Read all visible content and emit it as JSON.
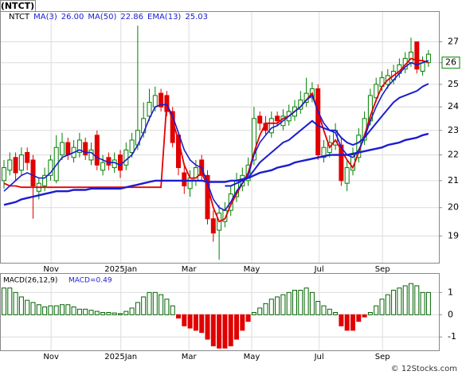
{
  "chart_data": [
    {
      "type": "candlestick",
      "title": "(NTCT)",
      "symbol": "NTCT",
      "log": true,
      "grid": true,
      "up_color": "#008000",
      "down_color": "#e00000",
      "ylim": [
        18.1,
        28.5
      ],
      "yticks": [
        19,
        20,
        21,
        22,
        23,
        24,
        25,
        26,
        27
      ],
      "xticks": [
        {
          "value": 8.1,
          "label": "Nov"
        },
        {
          "value": 20.1,
          "label": "2025Jan"
        },
        {
          "value": 31.8,
          "label": "Mar"
        },
        {
          "value": 42.6,
          "label": "May"
        },
        {
          "value": 54.2,
          "label": "Jul"
        },
        {
          "value": 65.1,
          "label": "Sep"
        }
      ],
      "last_price": 26,
      "open": [
        21.0,
        21.4,
        21.9,
        21.4,
        22.1,
        21.8,
        20.6,
        20.8,
        21.2,
        21.0,
        22.0,
        22.5,
        21.9,
        22.1,
        22.5,
        21.8,
        22.8,
        21.4,
        21.9,
        21.5,
        22.0,
        21.6,
        22.1,
        22.4,
        22.9,
        23.6,
        24.0,
        24.6,
        24.5,
        23.8,
        22.8,
        21.3,
        20.7,
        21.0,
        21.8,
        21.2,
        19.6,
        19.2,
        19.5,
        19.9,
        20.4,
        20.8,
        21.0,
        21.8,
        23.6,
        23.3,
        22.9,
        23.6,
        23.2,
        23.4,
        23.6,
        23.9,
        24.2,
        24.4,
        24.8,
        21.9,
        22.1,
        22.4,
        22.4,
        20.9,
        21.4,
        21.9,
        22.6,
        23.4,
        24.4,
        24.9,
        25.0,
        25.2,
        25.5,
        25.7,
        26.0,
        27.0,
        25.6,
        26.0
      ],
      "high": [
        21.8,
        22.1,
        22.1,
        22.3,
        22.3,
        22.0,
        21.1,
        21.5,
        22.0,
        22.8,
        22.9,
        22.7,
        22.6,
        22.9,
        22.7,
        22.5,
        23.0,
        22.0,
        22.1,
        22.1,
        22.2,
        22.5,
        22.9,
        27.8,
        24.2,
        24.8,
        24.9,
        24.8,
        24.7,
        24.0,
        22.9,
        21.6,
        21.4,
        21.8,
        22.0,
        21.4,
        19.9,
        20.1,
        20.2,
        20.8,
        21.3,
        21.5,
        21.9,
        24.0,
        23.8,
        23.6,
        23.8,
        23.8,
        23.9,
        24.1,
        24.3,
        24.7,
        25.3,
        25.1,
        25.0,
        22.6,
        22.8,
        23.3,
        22.7,
        21.8,
        22.3,
        23.1,
        23.8,
        24.8,
        25.3,
        25.6,
        25.7,
        25.9,
        26.2,
        26.5,
        27.2,
        27.0,
        26.3,
        26.6
      ],
      "low": [
        20.7,
        21.2,
        21.0,
        21.2,
        21.4,
        19.6,
        20.3,
        20.6,
        21.0,
        20.9,
        21.8,
        21.8,
        21.7,
        21.9,
        21.8,
        21.6,
        21.4,
        21.2,
        21.4,
        21.3,
        21.1,
        21.4,
        21.9,
        22.2,
        22.7,
        23.4,
        23.8,
        23.8,
        23.6,
        22.3,
        21.2,
        20.5,
        20.4,
        20.8,
        21.0,
        19.4,
        18.8,
        18.2,
        19.3,
        19.7,
        20.2,
        20.6,
        20.8,
        21.6,
        23.0,
        22.8,
        22.7,
        23.2,
        23.0,
        23.2,
        23.4,
        23.7,
        24.0,
        24.2,
        21.8,
        21.7,
        21.9,
        22.2,
        20.8,
        20.6,
        21.2,
        21.7,
        22.4,
        23.2,
        24.2,
        24.7,
        24.8,
        25.0,
        25.3,
        25.5,
        25.8,
        25.5,
        25.4,
        25.8
      ],
      "close": [
        21.5,
        21.8,
        21.3,
        22.0,
        21.7,
        20.8,
        20.9,
        21.2,
        21.8,
        22.3,
        22.5,
        22.0,
        22.3,
        22.6,
        22.0,
        22.2,
        21.6,
        21.7,
        21.6,
        21.8,
        21.4,
        22.2,
        22.6,
        23.0,
        23.5,
        24.2,
        24.5,
        24.0,
        23.8,
        22.5,
        21.5,
        20.8,
        21.1,
        21.5,
        21.2,
        19.6,
        19.1,
        19.8,
        19.9,
        20.5,
        21.0,
        21.2,
        21.6,
        23.5,
        23.3,
        23.0,
        23.5,
        23.4,
        23.6,
        23.8,
        24.0,
        24.3,
        24.6,
        24.8,
        22.0,
        22.3,
        22.5,
        23.0,
        21.0,
        21.5,
        22.0,
        22.8,
        23.5,
        24.5,
        25.0,
        25.3,
        25.4,
        25.6,
        25.9,
        26.2,
        26.5,
        25.7,
        26.0,
        26.4
      ],
      "series": [
        {
          "name": "MA(3)",
          "legend_value": "26.00",
          "color": "#e60000",
          "width": 1.8,
          "values": [
            20.9,
            20.8,
            20.8,
            20.75,
            20.75,
            20.75,
            20.75,
            20.75,
            20.75,
            20.75,
            20.75,
            20.75,
            20.75,
            20.75,
            20.75,
            20.75,
            20.75,
            20.75,
            20.75,
            20.75,
            20.75,
            20.75,
            20.75,
            20.75,
            20.75,
            20.75,
            20.75,
            20.75,
            24.2,
            23.4,
            22.6,
            21.6,
            21.1,
            21.1,
            21.3,
            20.8,
            20.0,
            19.5,
            19.6,
            20.1,
            20.5,
            20.9,
            21.3,
            22.1,
            22.8,
            23.3,
            23.3,
            23.3,
            23.5,
            23.6,
            23.8,
            24.0,
            24.3,
            24.6,
            23.8,
            23.0,
            22.3,
            22.6,
            22.2,
            21.8,
            21.5,
            22.1,
            22.8,
            23.6,
            24.3,
            24.9,
            25.2,
            25.4,
            25.6,
            25.9,
            26.2,
            26.1,
            26.1,
            26.0
          ]
        },
        {
          "name": "MA(50)",
          "legend_value": "22.86",
          "color": "#1c1cd0",
          "width": 2.4,
          "values": [
            20.1,
            20.15,
            20.2,
            20.3,
            20.35,
            20.4,
            20.45,
            20.5,
            20.55,
            20.6,
            20.6,
            20.6,
            20.65,
            20.65,
            20.65,
            20.7,
            20.7,
            20.7,
            20.7,
            20.7,
            20.7,
            20.75,
            20.8,
            20.85,
            20.9,
            20.95,
            21.0,
            21.0,
            21.0,
            21.0,
            21.0,
            21.0,
            21.0,
            21.0,
            21.0,
            20.95,
            20.95,
            20.95,
            20.95,
            21.0,
            21.0,
            21.05,
            21.1,
            21.2,
            21.3,
            21.35,
            21.4,
            21.5,
            21.55,
            21.6,
            21.7,
            21.75,
            21.8,
            21.85,
            21.9,
            21.95,
            22.0,
            22.0,
            22.0,
            22.0,
            22.05,
            22.1,
            22.15,
            22.2,
            22.25,
            22.3,
            22.4,
            22.45,
            22.5,
            22.6,
            22.65,
            22.7,
            22.8,
            22.86
          ]
        },
        {
          "name": "EMA(13)",
          "legend_value": "25.03",
          "color": "#1c1cd0",
          "width": 2,
          "values": [
            null,
            null,
            null,
            null,
            null,
            null,
            null,
            null,
            null,
            null,
            null,
            null,
            null,
            null,
            null,
            null,
            null,
            null,
            null,
            null,
            null,
            null,
            null,
            null,
            null,
            null,
            null,
            null,
            null,
            null,
            null,
            null,
            null,
            null,
            null,
            null,
            null,
            null,
            20.8,
            20.8,
            20.9,
            21.0,
            21.1,
            21.4,
            21.7,
            21.9,
            22.1,
            22.3,
            22.5,
            22.6,
            22.8,
            23.0,
            23.2,
            23.4,
            23.2,
            23.1,
            23.0,
            23.0,
            22.7,
            22.5,
            22.4,
            22.5,
            22.7,
            23.0,
            23.3,
            23.6,
            23.9,
            24.2,
            24.4,
            24.5,
            24.6,
            24.7,
            24.9,
            25.03
          ]
        },
        {
          "color": "#1c1cd0",
          "width": 1.6,
          "values": [
            20.6,
            20.8,
            21.0,
            21.2,
            21.3,
            21.2,
            21.1,
            21.1,
            21.3,
            21.6,
            21.9,
            22.0,
            22.1,
            22.2,
            22.1,
            22.1,
            21.9,
            21.8,
            21.7,
            21.7,
            21.6,
            21.8,
            22.0,
            22.4,
            22.9,
            23.5,
            24.0,
            24.1,
            24.1,
            23.6,
            22.9,
            22.2,
            21.8,
            21.6,
            21.5,
            20.9,
            20.3,
            20.0,
            19.9,
            20.2,
            20.6,
            20.9,
            21.2,
            22.0,
            22.5,
            22.8,
            23.1,
            23.2,
            23.4,
            23.6,
            23.8,
            24.0,
            24.3,
            24.5,
            23.8,
            23.3,
            23.0,
            22.9,
            22.3,
            22.0,
            21.9,
            22.2,
            22.7,
            23.4,
            24.0,
            24.5,
            24.9,
            25.2,
            25.5,
            25.8,
            26.0,
            25.9,
            26.0,
            26.1
          ]
        }
      ]
    },
    {
      "type": "bar",
      "title": "MACD(26,12,9)",
      "subtitle": "MACD=0.49",
      "grid": true,
      "up_color": "#006400",
      "down_color": "#e00000",
      "ylim": [
        -1.6,
        1.8
      ],
      "yticks": [
        -1,
        0,
        1
      ],
      "values": [
        1.2,
        1.2,
        1.0,
        0.8,
        0.65,
        0.55,
        0.45,
        0.35,
        0.4,
        0.4,
        0.45,
        0.45,
        0.35,
        0.25,
        0.25,
        0.2,
        0.15,
        0.1,
        0.1,
        0.08,
        0.05,
        0.15,
        0.3,
        0.55,
        0.8,
        1.0,
        1.0,
        0.9,
        0.7,
        0.4,
        -0.15,
        -0.5,
        -0.6,
        -0.7,
        -0.8,
        -1.1,
        -1.4,
        -1.5,
        -1.5,
        -1.4,
        -1.1,
        -0.7,
        -0.3,
        0.1,
        0.3,
        0.5,
        0.7,
        0.8,
        0.9,
        1.0,
        1.1,
        1.1,
        1.2,
        1.0,
        0.6,
        0.4,
        0.25,
        0.1,
        -0.5,
        -0.7,
        -0.7,
        -0.3,
        -0.1,
        0.1,
        0.4,
        0.7,
        0.9,
        1.1,
        1.2,
        1.3,
        1.4,
        1.3,
        1.0,
        1.0
      ]
    }
  ],
  "watermark": "© 12Stocks.com"
}
